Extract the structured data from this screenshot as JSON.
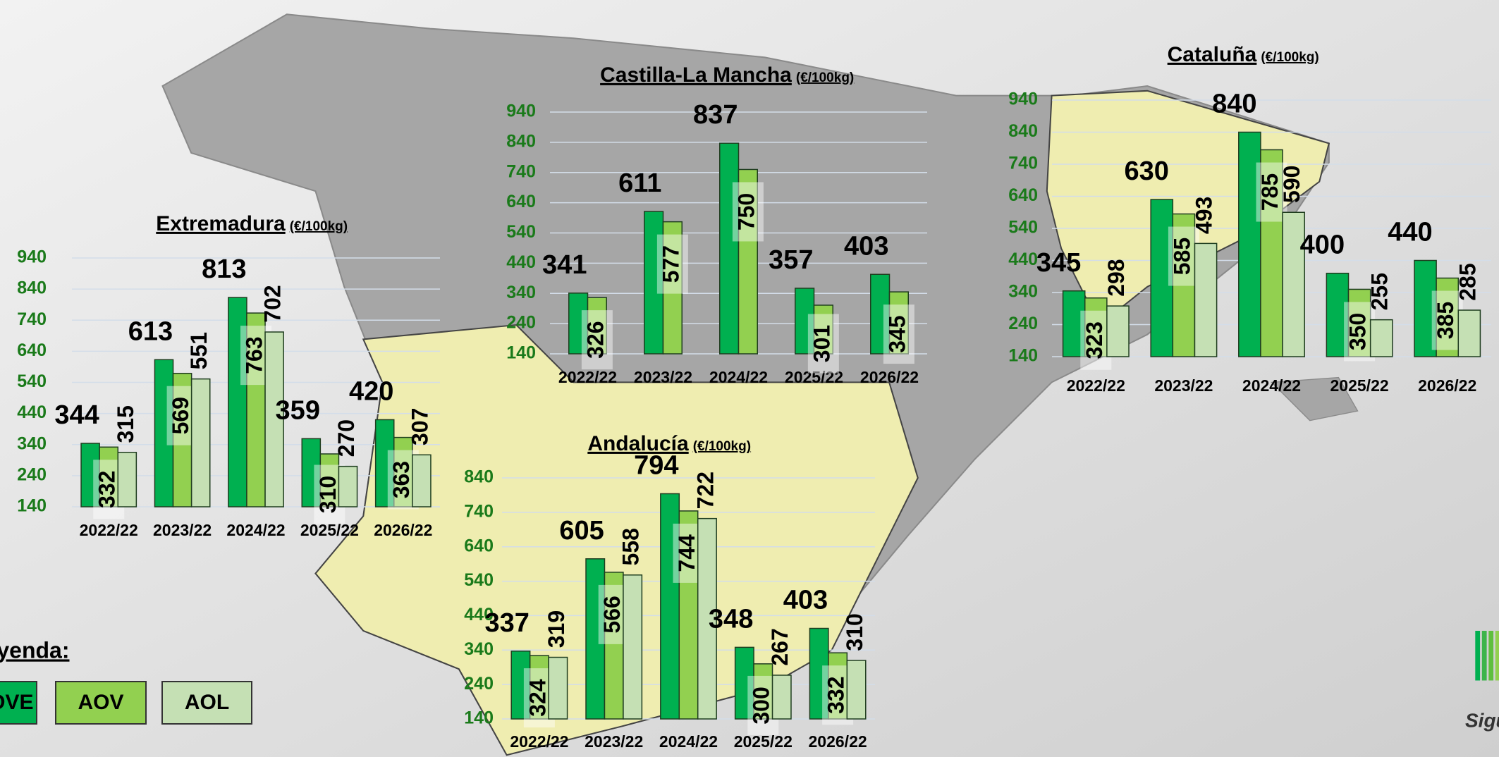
{
  "chart_data": [
    {
      "type": "bar",
      "title": "Extremadura",
      "unit": "(€/100kg)",
      "categories": [
        "2022/22",
        "2023/22",
        "2024/22",
        "2025/22",
        "2026/22"
      ],
      "series": [
        {
          "name": "AOVE",
          "color": "#00b050",
          "values": [
            344,
            613,
            813,
            359,
            420
          ]
        },
        {
          "name": "AOV",
          "color": "#92d050",
          "values": [
            332,
            569,
            763,
            310,
            363
          ]
        },
        {
          "name": "AOL",
          "color": "#c5e0b4",
          "values": [
            315,
            551,
            702,
            270,
            307
          ]
        }
      ],
      "ylim": [
        140,
        940
      ],
      "yticks": [
        140,
        240,
        340,
        440,
        540,
        640,
        740,
        840,
        940
      ],
      "grid": true
    },
    {
      "type": "bar",
      "title": "Castilla-La Mancha",
      "unit": "(€/100kg)",
      "categories": [
        "2022/22",
        "2023/22",
        "2024/22",
        "2025/22",
        "2026/22"
      ],
      "series": [
        {
          "name": "AOVE",
          "color": "#00b050",
          "values": [
            341,
            611,
            837,
            357,
            403
          ]
        },
        {
          "name": "AOV",
          "color": "#92d050",
          "values": [
            326,
            577,
            750,
            301,
            345
          ]
        }
      ],
      "ylim": [
        140,
        940
      ],
      "yticks": [
        140,
        240,
        340,
        440,
        540,
        640,
        740,
        840,
        940
      ],
      "grid": true
    },
    {
      "type": "bar",
      "title": "Cataluña",
      "unit": "(€/100kg)",
      "categories": [
        "2022/22",
        "2023/22",
        "2024/22",
        "2025/22",
        "2026/22"
      ],
      "series": [
        {
          "name": "AOVE",
          "color": "#00b050",
          "values": [
            345,
            630,
            840,
            400,
            440
          ]
        },
        {
          "name": "AOV",
          "color": "#92d050",
          "values": [
            323,
            585,
            785,
            350,
            385
          ]
        },
        {
          "name": "AOL",
          "color": "#c5e0b4",
          "values": [
            298,
            493,
            590,
            255,
            285
          ]
        }
      ],
      "ylim": [
        140,
        940
      ],
      "yticks": [
        140,
        240,
        340,
        440,
        540,
        640,
        740,
        840,
        940
      ],
      "grid": true
    },
    {
      "type": "bar",
      "title": "Andalucía",
      "unit": "(€/100kg)",
      "categories": [
        "2022/22",
        "2023/22",
        "2024/22",
        "2025/22",
        "2026/22"
      ],
      "series": [
        {
          "name": "AOVE",
          "color": "#00b050",
          "values": [
            337,
            605,
            794,
            348,
            403
          ]
        },
        {
          "name": "AOV",
          "color": "#92d050",
          "values": [
            324,
            566,
            744,
            300,
            332
          ]
        },
        {
          "name": "AOL",
          "color": "#c5e0b4",
          "values": [
            319,
            558,
            722,
            267,
            310
          ]
        }
      ],
      "ylim": [
        140,
        840
      ],
      "yticks": [
        140,
        240,
        340,
        440,
        540,
        640,
        740,
        840
      ],
      "grid": true
    }
  ],
  "legend": {
    "title": "Leyenda:"
  },
  "footer": {
    "text": "Sigu"
  }
}
